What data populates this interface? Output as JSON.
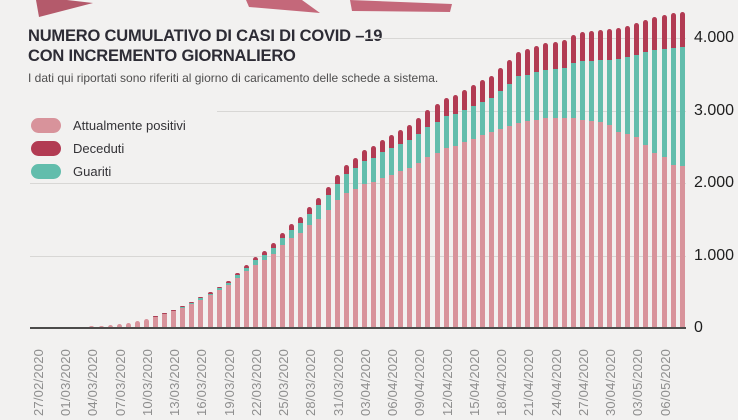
{
  "page": {
    "background": "#f2f1f0"
  },
  "header": {
    "title_line1": "NUMERO CUMULATIVO DI CASI DI COVID –19",
    "title_line2": "CON INCREMENTO GIORNALIERO",
    "subtitle": "I dati qui riportati sono riferiti al giorno di caricamento delle schede a sistema."
  },
  "legend": {
    "items": [
      {
        "label": "Attualmente positivi",
        "color": "#d8939b"
      },
      {
        "label": "Deceduti",
        "color": "#b23b53"
      },
      {
        "label": "Guariti",
        "color": "#62bdac"
      }
    ]
  },
  "decor": {
    "ribbon_color_dark": "#b45a6b",
    "ribbon_color_light": "#c4687a"
  },
  "chart_data": {
    "type": "bar",
    "stacked": true,
    "title": "NUMERO CUMULATIVO DI CASI DI COVID –19 CON INCREMENTO GIORNALIERO",
    "xlabel": "",
    "ylabel": "",
    "ylim": [
      0,
      4400
    ],
    "grid": "horizontal",
    "legend_position": "top-left",
    "yticks": [
      0,
      1000,
      2000,
      3000,
      4000
    ],
    "ytick_labels": [
      "0",
      "1.000",
      "2.000",
      "3.000",
      "4.000"
    ],
    "x_label_every": 3,
    "stack_order_bottom_to_top": [
      "Attualmente positivi",
      "Guariti",
      "Deceduti"
    ],
    "x": [
      "27/02/2020",
      "28/02/2020",
      "29/02/2020",
      "01/03/2020",
      "02/03/2020",
      "03/03/2020",
      "04/03/2020",
      "05/03/2020",
      "06/03/2020",
      "07/03/2020",
      "08/03/2020",
      "09/03/2020",
      "10/03/2020",
      "11/03/2020",
      "12/03/2020",
      "13/03/2020",
      "14/03/2020",
      "15/03/2020",
      "16/03/2020",
      "17/03/2020",
      "18/03/2020",
      "19/03/2020",
      "20/03/2020",
      "21/03/2020",
      "22/03/2020",
      "23/03/2020",
      "24/03/2020",
      "25/03/2020",
      "26/03/2020",
      "27/03/2020",
      "28/03/2020",
      "29/03/2020",
      "30/03/2020",
      "31/03/2020",
      "01/04/2020",
      "02/04/2020",
      "03/04/2020",
      "04/04/2020",
      "05/04/2020",
      "06/04/2020",
      "07/04/2020",
      "08/04/2020",
      "09/04/2020",
      "10/04/2020",
      "11/04/2020",
      "12/04/2020",
      "13/04/2020",
      "14/04/2020",
      "15/04/2020",
      "16/04/2020",
      "17/04/2020",
      "18/04/2020",
      "19/04/2020",
      "20/04/2020",
      "21/04/2020",
      "22/04/2020",
      "23/04/2020",
      "24/04/2020",
      "25/04/2020",
      "26/04/2020",
      "27/04/2020",
      "28/04/2020",
      "29/04/2020",
      "30/04/2020",
      "01/05/2020",
      "02/05/2020",
      "03/05/2020",
      "04/05/2020",
      "05/05/2020",
      "06/05/2020",
      "07/05/2020",
      "08/05/2020"
    ],
    "series": [
      {
        "name": "Attualmente positivi",
        "color": "#d8939b",
        "values": [
          0,
          2,
          4,
          6,
          10,
          15,
          21,
          28,
          39,
          52,
          71,
          95,
          124,
          157,
          194,
          236,
          282,
          333,
          392,
          455,
          524,
          597,
          690,
          780,
          870,
          940,
          1020,
          1140,
          1240,
          1310,
          1420,
          1510,
          1630,
          1760,
          1860,
          1920,
          1990,
          2020,
          2070,
          2110,
          2160,
          2210,
          2280,
          2360,
          2420,
          2480,
          2510,
          2560,
          2610,
          2660,
          2700,
          2750,
          2790,
          2830,
          2850,
          2870,
          2890,
          2890,
          2890,
          2890,
          2870,
          2855,
          2845,
          2800,
          2710,
          2675,
          2640,
          2525,
          2415,
          2365,
          2250,
          2230
        ]
      },
      {
        "name": "Guariti",
        "color": "#62bdac",
        "values": [
          0,
          0,
          0,
          0,
          0,
          0,
          0,
          1,
          2,
          2,
          2,
          3,
          4,
          5,
          7,
          8,
          10,
          12,
          15,
          19,
          22,
          30,
          41,
          54,
          67,
          72,
          89,
          100,
          117,
          134,
          155,
          182,
          203,
          230,
          260,
          285,
          315,
          330,
          355,
          370,
          378,
          387,
          400,
          418,
          425,
          440,
          443,
          447,
          455,
          463,
          472,
          520,
          580,
          640,
          645,
          662,
          674,
          685,
          702,
          759,
          815,
          833,
          851,
          900,
          998,
          1062,
          1125,
          1277,
          1424,
          1490,
          1618,
          1650
        ]
      },
      {
        "name": "Deceduti",
        "color": "#b23b53",
        "values": [
          0,
          0,
          0,
          0,
          0,
          0,
          1,
          1,
          1,
          2,
          3,
          3,
          4,
          5,
          6,
          8,
          10,
          12,
          15,
          18,
          21,
          25,
          31,
          38,
          45,
          53,
          61,
          70,
          78,
          86,
          95,
          103,
          112,
          120,
          130,
          140,
          150,
          160,
          170,
          180,
          192,
          203,
          215,
          227,
          238,
          250,
          262,
          273,
          285,
          297,
          308,
          320,
          330,
          340,
          350,
          358,
          366,
          375,
          383,
          391,
          400,
          407,
          414,
          420,
          427,
          433,
          440,
          448,
          456,
          465,
          472,
          480
        ]
      }
    ]
  }
}
